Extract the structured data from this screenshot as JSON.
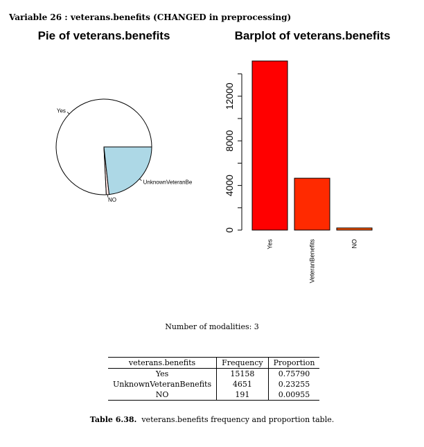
{
  "heading": "Variable 26 :  veterans.benefits (CHANGED in preprocessing)",
  "chart_data": [
    {
      "type": "pie",
      "title": "Pie of veterans.benefits",
      "categories": [
        "Yes",
        "NO",
        "UnknownVeteranBe"
      ],
      "values": [
        15158,
        191,
        4651
      ],
      "colors": [
        "#ffffff",
        "#ffe4e1",
        "#add8e6"
      ]
    },
    {
      "type": "bar",
      "title": "Barplot of veterans.benefits",
      "categories": [
        "Yes",
        "UnknownVeteranBenefits",
        "NO"
      ],
      "category_labels": [
        "Yes",
        "  VeteranBenefits",
        "NO"
      ],
      "values": [
        15158,
        4651,
        191
      ],
      "colors": [
        "#ff0000",
        "#ff2a00",
        "#ff5500"
      ],
      "ylim": [
        0,
        15158
      ],
      "yticks": [
        0,
        4000,
        8000,
        12000
      ],
      "minor_ticks": [
        2000,
        6000,
        10000,
        14000
      ]
    }
  ],
  "modalities_text": "Number of modalities: 3",
  "table": {
    "headers": [
      "veterans.benefits",
      "Frequency",
      "Proportion"
    ],
    "rows": [
      [
        "Yes",
        "15158",
        "0.75790"
      ],
      [
        "UnknownVeteranBenefits",
        "4651",
        "0.23255"
      ],
      [
        "NO",
        "191",
        "0.00955"
      ]
    ]
  },
  "caption": {
    "label": "Table 6.38.",
    "text": "veterans.benefits frequency and proportion table."
  }
}
